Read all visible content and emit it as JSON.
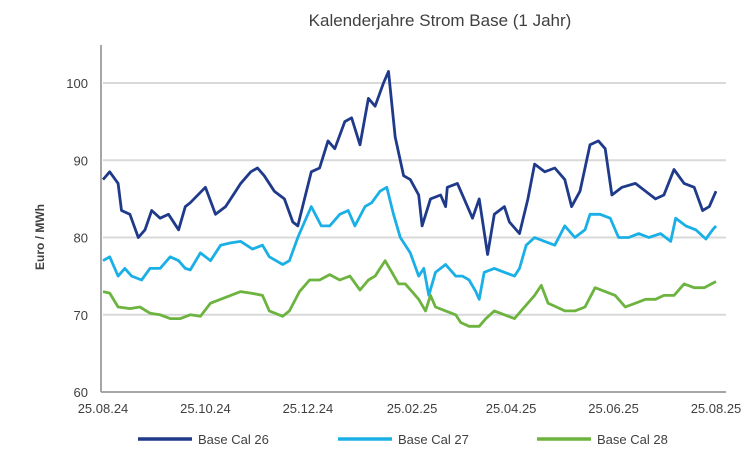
{
  "chart_data": {
    "type": "line",
    "title": "Kalenderjahre Strom Base (1 Jahr)",
    "xlabel": "",
    "ylabel": "Euro / MWh",
    "ylim": [
      60,
      105
    ],
    "yticks": [
      60,
      70,
      80,
      90,
      100
    ],
    "xlim_days": [
      0,
      365
    ],
    "xticks": [
      {
        "day": 0,
        "label": "25.08.24"
      },
      {
        "day": 61,
        "label": "25.10.24"
      },
      {
        "day": 122,
        "label": "25.12.24"
      },
      {
        "day": 184,
        "label": "25.02.25"
      },
      {
        "day": 243,
        "label": "25.04.25"
      },
      {
        "day": 304,
        "label": "25.06.25"
      },
      {
        "day": 365,
        "label": "25.08.25"
      }
    ],
    "grid": true,
    "legend": "bottom",
    "x_unit": "days since 25.08.24",
    "series": [
      {
        "name": "Base Cal 26",
        "color": "#1f3a8a",
        "points": [
          [
            0,
            87.5
          ],
          [
            4,
            88.5
          ],
          [
            9,
            87
          ],
          [
            11,
            83.5
          ],
          [
            16,
            83
          ],
          [
            21,
            80
          ],
          [
            25,
            81
          ],
          [
            29,
            83.5
          ],
          [
            34,
            82.5
          ],
          [
            39,
            83
          ],
          [
            45,
            81
          ],
          [
            49,
            84
          ],
          [
            52,
            84.5
          ],
          [
            61,
            86.5
          ],
          [
            67,
            83
          ],
          [
            73,
            84
          ],
          [
            79,
            86
          ],
          [
            82,
            87
          ],
          [
            88,
            88.5
          ],
          [
            92,
            89
          ],
          [
            96,
            88
          ],
          [
            102,
            86
          ],
          [
            108,
            85
          ],
          [
            113,
            82
          ],
          [
            116,
            81.5
          ],
          [
            120,
            85
          ],
          [
            124,
            88.5
          ],
          [
            129,
            89
          ],
          [
            134,
            92.5
          ],
          [
            138,
            91.5
          ],
          [
            144,
            95
          ],
          [
            148,
            95.5
          ],
          [
            153,
            92
          ],
          [
            158,
            98
          ],
          [
            162,
            97
          ],
          [
            167,
            100
          ],
          [
            170,
            101.5
          ],
          [
            174,
            93
          ],
          [
            179,
            88
          ],
          [
            183,
            87.5
          ],
          [
            188,
            85.5
          ],
          [
            190,
            81.5
          ],
          [
            195,
            85
          ],
          [
            201,
            85.5
          ],
          [
            204,
            84
          ],
          [
            205,
            86.5
          ],
          [
            211,
            87
          ],
          [
            216,
            84.5
          ],
          [
            220,
            82.5
          ],
          [
            224,
            85
          ],
          [
            229,
            77.8
          ],
          [
            233,
            83
          ],
          [
            239,
            84
          ],
          [
            242,
            82
          ],
          [
            248,
            80.5
          ],
          [
            253,
            85
          ],
          [
            257,
            89.5
          ],
          [
            263,
            88.5
          ],
          [
            269,
            89
          ],
          [
            275,
            87.5
          ],
          [
            279,
            84
          ],
          [
            284,
            86
          ],
          [
            290,
            92
          ],
          [
            295,
            92.5
          ],
          [
            299,
            91.5
          ],
          [
            303,
            85.5
          ],
          [
            309,
            86.5
          ],
          [
            317,
            87
          ],
          [
            323,
            86
          ],
          [
            329,
            85
          ],
          [
            334,
            85.5
          ],
          [
            340,
            88.8
          ],
          [
            346,
            87
          ],
          [
            352,
            86.5
          ],
          [
            357,
            83.5
          ],
          [
            361,
            84
          ],
          [
            365,
            86
          ]
        ]
      },
      {
        "name": "Base Cal 27",
        "color": "#1ab0e6",
        "points": [
          [
            0,
            77
          ],
          [
            4,
            77.5
          ],
          [
            9,
            75
          ],
          [
            13,
            76
          ],
          [
            17,
            75
          ],
          [
            23,
            74.5
          ],
          [
            28,
            76
          ],
          [
            34,
            76
          ],
          [
            40,
            77.5
          ],
          [
            45,
            77
          ],
          [
            49,
            76
          ],
          [
            52,
            75.8
          ],
          [
            58,
            78
          ],
          [
            64,
            77
          ],
          [
            70,
            79
          ],
          [
            76,
            79.3
          ],
          [
            82,
            79.5
          ],
          [
            89,
            78.5
          ],
          [
            95,
            79
          ],
          [
            99,
            77.5
          ],
          [
            107,
            76.5
          ],
          [
            111,
            77
          ],
          [
            116,
            80
          ],
          [
            120,
            82
          ],
          [
            124,
            84
          ],
          [
            130,
            81.5
          ],
          [
            135,
            81.5
          ],
          [
            141,
            83
          ],
          [
            146,
            83.5
          ],
          [
            150,
            81.5
          ],
          [
            156,
            84
          ],
          [
            160,
            84.5
          ],
          [
            165,
            86
          ],
          [
            169,
            86.5
          ],
          [
            173,
            83
          ],
          [
            177,
            80
          ],
          [
            183,
            78
          ],
          [
            188,
            75
          ],
          [
            191,
            76
          ],
          [
            194,
            72.5
          ],
          [
            198,
            75.5
          ],
          [
            204,
            76.5
          ],
          [
            210,
            75
          ],
          [
            214,
            75
          ],
          [
            218,
            74.5
          ],
          [
            222,
            73
          ],
          [
            224,
            72
          ],
          [
            227,
            75.5
          ],
          [
            233,
            76
          ],
          [
            239,
            75.5
          ],
          [
            245,
            75
          ],
          [
            248,
            76
          ],
          [
            252,
            79
          ],
          [
            257,
            80
          ],
          [
            263,
            79.5
          ],
          [
            269,
            79
          ],
          [
            275,
            81.5
          ],
          [
            281,
            80
          ],
          [
            287,
            81
          ],
          [
            290,
            83
          ],
          [
            296,
            83
          ],
          [
            302,
            82.5
          ],
          [
            307,
            80
          ],
          [
            313,
            80
          ],
          [
            319,
            80.5
          ],
          [
            325,
            80
          ],
          [
            332,
            80.5
          ],
          [
            338,
            79.5
          ],
          [
            341,
            82.5
          ],
          [
            347,
            81.5
          ],
          [
            353,
            81
          ],
          [
            359,
            79.8
          ],
          [
            363,
            81
          ],
          [
            365,
            81.5
          ]
        ]
      },
      {
        "name": "Base Cal 28",
        "color": "#6cb33f",
        "points": [
          [
            0,
            73
          ],
          [
            4,
            72.8
          ],
          [
            9,
            71
          ],
          [
            16,
            70.8
          ],
          [
            22,
            71
          ],
          [
            28,
            70.2
          ],
          [
            34,
            70
          ],
          [
            40,
            69.5
          ],
          [
            46,
            69.5
          ],
          [
            52,
            70
          ],
          [
            58,
            69.8
          ],
          [
            64,
            71.5
          ],
          [
            70,
            72
          ],
          [
            76,
            72.5
          ],
          [
            82,
            73
          ],
          [
            88,
            72.8
          ],
          [
            95,
            72.5
          ],
          [
            99,
            70.5
          ],
          [
            107,
            69.8
          ],
          [
            111,
            70.5
          ],
          [
            117,
            73
          ],
          [
            123,
            74.5
          ],
          [
            129,
            74.5
          ],
          [
            135,
            75.2
          ],
          [
            141,
            74.5
          ],
          [
            147,
            75
          ],
          [
            153,
            73.2
          ],
          [
            158,
            74.5
          ],
          [
            162,
            75
          ],
          [
            168,
            77
          ],
          [
            172,
            75.5
          ],
          [
            176,
            74
          ],
          [
            180,
            74
          ],
          [
            184,
            73
          ],
          [
            188,
            72
          ],
          [
            192,
            70.5
          ],
          [
            195,
            72.5
          ],
          [
            198,
            71
          ],
          [
            204,
            70.5
          ],
          [
            210,
            70
          ],
          [
            213,
            69
          ],
          [
            218,
            68.5
          ],
          [
            224,
            68.5
          ],
          [
            228,
            69.5
          ],
          [
            233,
            70.5
          ],
          [
            239,
            70
          ],
          [
            245,
            69.5
          ],
          [
            251,
            71
          ],
          [
            257,
            72.5
          ],
          [
            261,
            73.8
          ],
          [
            265,
            71.5
          ],
          [
            270,
            71
          ],
          [
            275,
            70.5
          ],
          [
            281,
            70.5
          ],
          [
            287,
            71
          ],
          [
            293,
            73.5
          ],
          [
            299,
            73
          ],
          [
            305,
            72.5
          ],
          [
            311,
            71
          ],
          [
            317,
            71.5
          ],
          [
            323,
            72
          ],
          [
            329,
            72
          ],
          [
            334,
            72.5
          ],
          [
            340,
            72.5
          ],
          [
            346,
            74
          ],
          [
            352,
            73.5
          ],
          [
            358,
            73.5
          ],
          [
            365,
            74.3
          ]
        ]
      }
    ]
  }
}
